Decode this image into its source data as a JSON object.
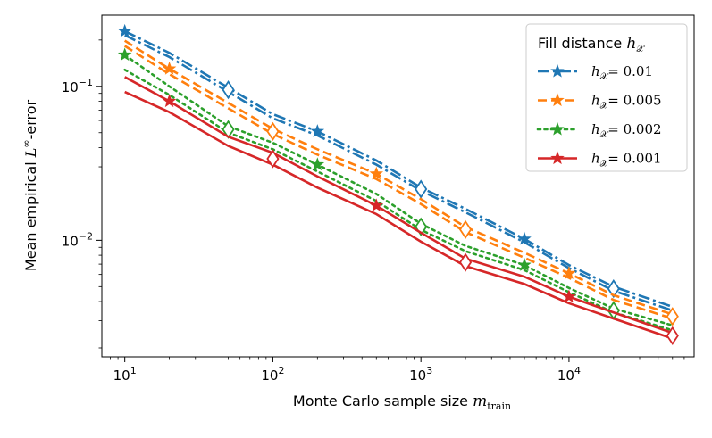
{
  "chart_data": {
    "type": "line",
    "xscale": "log",
    "yscale": "log",
    "xlim": [
      7.0,
      70000
    ],
    "ylim": [
      0.00175,
      0.29
    ],
    "xlabel": "Monte Carlo sample size m_train",
    "xlabel_main": "Monte Carlo sample size",
    "xlabel_var": "m",
    "xlabel_sub": "train",
    "ylabel": "Mean empirical L^∞-error",
    "ylabel_pre": "Mean empirical",
    "ylabel_var": "L",
    "ylabel_sup": "∞",
    "ylabel_post": "-error",
    "xticks": [
      {
        "value": 10,
        "base": "10",
        "exp": "1"
      },
      {
        "value": 100,
        "base": "10",
        "exp": "2"
      },
      {
        "value": 1000,
        "base": "10",
        "exp": "3"
      },
      {
        "value": 10000,
        "base": "10",
        "exp": "4"
      }
    ],
    "yticks": [
      {
        "value": 0.1,
        "base": "10",
        "exp": "−1"
      },
      {
        "value": 0.01,
        "base": "10",
        "exp": "−2"
      }
    ],
    "x": [
      10,
      20,
      50,
      100,
      200,
      500,
      1000,
      2000,
      5000,
      10000,
      20000,
      50000
    ],
    "legend": {
      "title": "Fill distance",
      "title_var": "h",
      "title_sub": "𝒳",
      "location": "top-right"
    },
    "series": [
      {
        "name": "h_X = 0.01",
        "label_var": "h",
        "label_sub": "𝒳",
        "label_val": "= 0.01",
        "color": "#1f77b4",
        "linestyle": "dashdot",
        "upper": [
          0.228,
          0.165,
          0.098,
          0.066,
          0.051,
          0.033,
          0.022,
          0.016,
          0.0102,
          0.0069,
          0.005,
          0.0037
        ],
        "lower": [
          0.215,
          0.155,
          0.092,
          0.062,
          0.048,
          0.031,
          0.021,
          0.0152,
          0.0097,
          0.0066,
          0.0047,
          0.0035
        ],
        "star_x": [
          10,
          200,
          5000
        ],
        "diamond_x": [
          50,
          1000,
          20000
        ]
      },
      {
        "name": "h_X = 0.005",
        "label_var": "h",
        "label_sub": "𝒳",
        "label_val": "= 0.005",
        "color": "#ff7f0e",
        "linestyle": "dashed",
        "upper": [
          0.198,
          0.13,
          0.078,
          0.053,
          0.039,
          0.027,
          0.0185,
          0.0122,
          0.0083,
          0.0061,
          0.0044,
          0.0033
        ],
        "lower": [
          0.183,
          0.12,
          0.072,
          0.049,
          0.036,
          0.025,
          0.0172,
          0.0113,
          0.0077,
          0.0057,
          0.0041,
          0.0031
        ],
        "star_x": [
          20,
          500,
          10000
        ],
        "diamond_x": [
          100,
          2000,
          50000
        ]
      },
      {
        "name": "h_X = 0.002",
        "label_var": "h",
        "label_sub": "𝒳",
        "label_val": "= 0.002",
        "color": "#2ca02c",
        "linestyle": "dotted",
        "upper": [
          0.16,
          0.1,
          0.055,
          0.043,
          0.031,
          0.02,
          0.0128,
          0.0092,
          0.0069,
          0.0049,
          0.0036,
          0.0028
        ],
        "lower": [
          0.128,
          0.088,
          0.05,
          0.039,
          0.028,
          0.018,
          0.0117,
          0.0085,
          0.0064,
          0.0046,
          0.0034,
          0.0026
        ],
        "star_x": [
          10,
          200,
          5000
        ],
        "diamond_x": [
          50,
          1000,
          20000
        ]
      },
      {
        "name": "h_X = 0.001",
        "label_var": "h",
        "label_sub": "𝒳",
        "label_val": "= 0.001",
        "color": "#d62728",
        "linestyle": "solid",
        "upper": [
          0.115,
          0.08,
          0.047,
          0.037,
          0.026,
          0.0168,
          0.0112,
          0.0076,
          0.0058,
          0.0043,
          0.0034,
          0.0025
        ],
        "lower": [
          0.092,
          0.068,
          0.041,
          0.031,
          0.022,
          0.0148,
          0.0098,
          0.0068,
          0.0052,
          0.0039,
          0.0031,
          0.0023
        ],
        "star_x": [
          20,
          500,
          10000
        ],
        "diamond_x": [
          100,
          2000,
          50000
        ]
      }
    ]
  }
}
